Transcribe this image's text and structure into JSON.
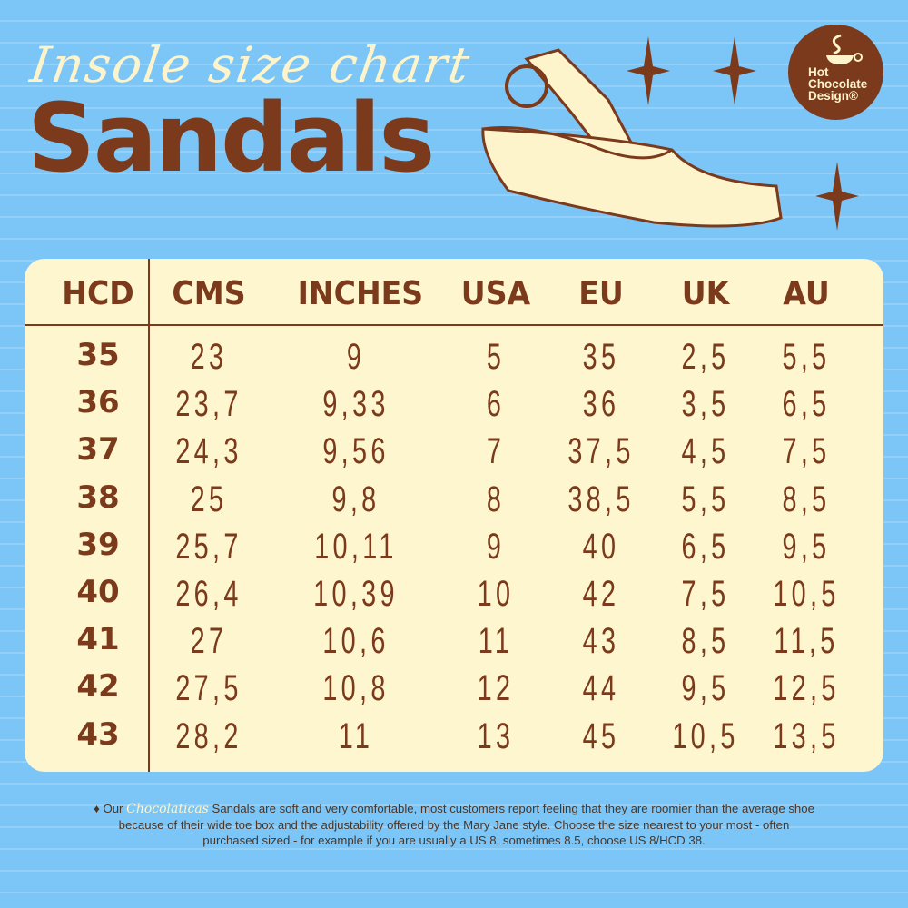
{
  "header": {
    "subtitle": "Insole size chart",
    "title": "Sandals"
  },
  "logo": {
    "text": "Hot Chocolate Design®"
  },
  "colors": {
    "background": "#7cc6f7",
    "brown": "#7b3a1c",
    "cream": "#fdf6cf"
  },
  "table": {
    "columns": [
      "HCD",
      "CMS",
      "INCHES",
      "USA",
      "EU",
      "UK",
      "AU"
    ],
    "rows": [
      [
        "35",
        "23",
        "9",
        "5",
        "35",
        "2,5",
        "5,5"
      ],
      [
        "36",
        "23,7",
        "9,33",
        "6",
        "36",
        "3,5",
        "6,5"
      ],
      [
        "37",
        "24,3",
        "9,56",
        "7",
        "37,5",
        "4,5",
        "7,5"
      ],
      [
        "38",
        "25",
        "9,8",
        "8",
        "38,5",
        "5,5",
        "8,5"
      ],
      [
        "39",
        "25,7",
        "10,11",
        "9",
        "40",
        "6,5",
        "9,5"
      ],
      [
        "40",
        "26,4",
        "10,39",
        "10",
        "42",
        "7,5",
        "10,5"
      ],
      [
        "41",
        "27",
        "10,6",
        "11",
        "43",
        "8,5",
        "11,5"
      ],
      [
        "42",
        "27,5",
        "10,8",
        "12",
        "44",
        "9,5",
        "12,5"
      ],
      [
        "43",
        "28,2",
        "11",
        "13",
        "45",
        "10,5",
        "13,5"
      ]
    ]
  },
  "footer": {
    "bullet": "♦ Our",
    "brand": "Chocolaticas",
    "text": "Sandals are soft and very comfortable, most customers report feeling that they are roomier than the average shoe because of their wide toe box and the adjustability offered by the Mary Jane style. Choose the size nearest to your most - often  purchased sized - for example if you are usually a US 8, sometimes 8.5, choose US 8/HCD 38."
  }
}
